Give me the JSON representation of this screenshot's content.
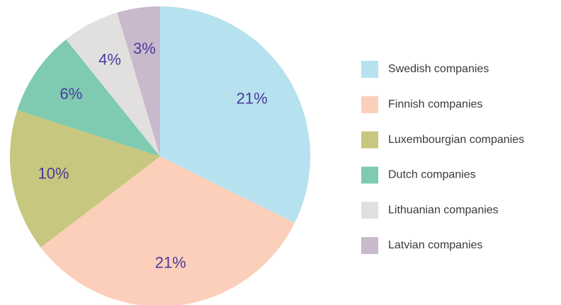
{
  "chart_data": {
    "type": "pie",
    "categories": [
      "Swedish companies",
      "Finnish companies",
      "Luxembourgian companies",
      "Dutch companies",
      "Lithuanian companies",
      "Latvian companies"
    ],
    "values": [
      21,
      21,
      10,
      6,
      4,
      3
    ],
    "value_labels": [
      "21%",
      "21%",
      "10%",
      "6%",
      "4%",
      "3%"
    ],
    "colors": [
      "#b5e2ee",
      "#fccfba",
      "#c7c77f",
      "#7ecbb2",
      "#e2e0df",
      "#c9b9cc"
    ],
    "legend": "right"
  }
}
